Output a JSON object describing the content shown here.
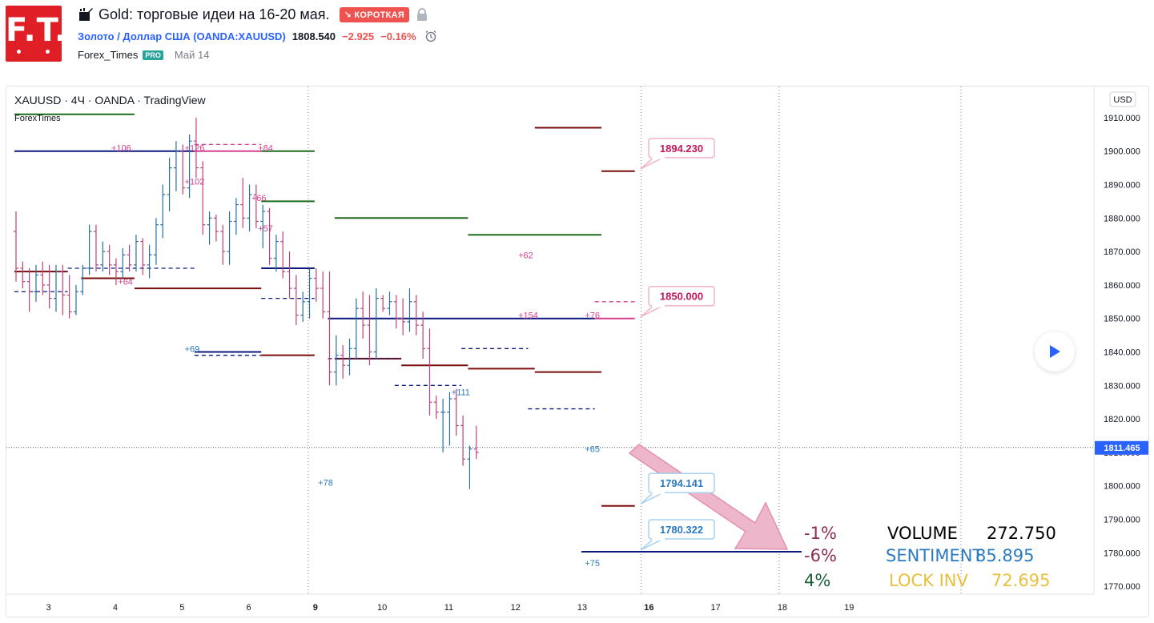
{
  "header": {
    "logo_text": "F.T.",
    "title": "Gold: торговые идеи на 16-20 мая.",
    "badge": "↘ КОРОТКАЯ",
    "symbol_name": "Золото / Доллар США (OANDA:XAUUSD)",
    "price": "1808.540",
    "change": "−2.925",
    "change_pct": "−0.16%",
    "author": "Forex_Times",
    "pro_badge": "PRO",
    "date": "Май 14"
  },
  "legend": {
    "line": "XAUUSD · 4Ч · OANDA · TradingView",
    "indicator": "ForexTimes"
  },
  "colors": {
    "up": "#2a6f9f",
    "down": "#b8437a",
    "maroon": "#7b0d0d",
    "navy": "#0d1a7d",
    "green": "#1e6b1e",
    "pink": "#d6408f",
    "blue_label": "#2a7ac0",
    "pink_label": "#c2185b",
    "arrow_fill": "#eeb3c9",
    "arrow_stroke": "#e08bab"
  },
  "chart_data": {
    "type": "ohlc",
    "ylim": [
      1765,
      1915
    ],
    "y_ticks": [
      "1910.000",
      "1900.000",
      "1890.000",
      "1880.000",
      "1870.000",
      "1860.000",
      "1850.000",
      "1840.000",
      "1830.000",
      "1820.000",
      "1810.000",
      "1800.000",
      "1790.000",
      "1780.000",
      "1770.000"
    ],
    "axis_unit": "USD",
    "current_price": "1811.465",
    "x_ticks": [
      {
        "label": "3",
        "bar": 5
      },
      {
        "label": "4",
        "bar": 15
      },
      {
        "label": "5",
        "bar": 25
      },
      {
        "label": "6",
        "bar": 35
      },
      {
        "label": "9",
        "bar": 45
      },
      {
        "label": "10",
        "bar": 55
      },
      {
        "label": "11",
        "bar": 65
      },
      {
        "label": "12",
        "bar": 75
      },
      {
        "label": "13",
        "bar": 85
      },
      {
        "label": "16",
        "bar": 95
      },
      {
        "label": "17",
        "bar": 105
      },
      {
        "label": "18",
        "bar": 115
      },
      {
        "label": "19",
        "bar": 125
      }
    ],
    "bars": [
      [
        1876,
        1882,
        1861,
        1865
      ],
      [
        1865,
        1867,
        1859,
        1861
      ],
      [
        1861,
        1865,
        1852,
        1858
      ],
      [
        1858,
        1866,
        1855,
        1863
      ],
      [
        1863,
        1867,
        1857,
        1860
      ],
      [
        1860,
        1866,
        1853,
        1856
      ],
      [
        1856,
        1866,
        1852,
        1864
      ],
      [
        1864,
        1866,
        1851,
        1857
      ],
      [
        1857,
        1863,
        1850,
        1852
      ],
      [
        1852,
        1860,
        1851,
        1858
      ],
      [
        1858,
        1866,
        1857,
        1865
      ],
      [
        1865,
        1878,
        1863,
        1876
      ],
      [
        1876,
        1878,
        1864,
        1866
      ],
      [
        1866,
        1873,
        1864,
        1870
      ],
      [
        1870,
        1872,
        1863,
        1866
      ],
      [
        1866,
        1868,
        1860,
        1864
      ],
      [
        1864,
        1871,
        1862,
        1869
      ],
      [
        1869,
        1872,
        1864,
        1866
      ],
      [
        1866,
        1875,
        1864,
        1873
      ],
      [
        1873,
        1874,
        1863,
        1866
      ],
      [
        1866,
        1872,
        1862,
        1869
      ],
      [
        1869,
        1880,
        1866,
        1878
      ],
      [
        1878,
        1890,
        1874,
        1887
      ],
      [
        1887,
        1898,
        1882,
        1895
      ],
      [
        1895,
        1903,
        1888,
        1900
      ],
      [
        1900,
        1902,
        1887,
        1889
      ],
      [
        1889,
        1905,
        1886,
        1903
      ],
      [
        1903,
        1910,
        1892,
        1895
      ],
      [
        1895,
        1897,
        1875,
        1878
      ],
      [
        1878,
        1882,
        1872,
        1880
      ],
      [
        1880,
        1881,
        1873,
        1876
      ],
      [
        1876,
        1878,
        1866,
        1870
      ],
      [
        1870,
        1882,
        1866,
        1879
      ],
      [
        1879,
        1886,
        1875,
        1884
      ],
      [
        1884,
        1892,
        1877,
        1880
      ],
      [
        1880,
        1890,
        1876,
        1887
      ],
      [
        1887,
        1890,
        1877,
        1879
      ],
      [
        1879,
        1884,
        1871,
        1882
      ],
      [
        1882,
        1883,
        1866,
        1868
      ],
      [
        1868,
        1875,
        1864,
        1873
      ],
      [
        1873,
        1876,
        1862,
        1864
      ],
      [
        1864,
        1870,
        1856,
        1859
      ],
      [
        1859,
        1863,
        1848,
        1851
      ],
      [
        1851,
        1858,
        1849,
        1855
      ],
      [
        1855,
        1865,
        1850,
        1862
      ],
      [
        1862,
        1865,
        1855,
        1859
      ],
      [
        1859,
        1864,
        1850,
        1852
      ],
      [
        1852,
        1864,
        1830,
        1834
      ],
      [
        1834,
        1845,
        1830,
        1839
      ],
      [
        1839,
        1842,
        1832,
        1836
      ],
      [
        1836,
        1844,
        1833,
        1841
      ],
      [
        1841,
        1856,
        1838,
        1853
      ],
      [
        1853,
        1858,
        1844,
        1848
      ],
      [
        1848,
        1857,
        1836,
        1840
      ],
      [
        1840,
        1859,
        1838,
        1856
      ],
      [
        1856,
        1857,
        1852,
        1853
      ],
      [
        1853,
        1858,
        1851,
        1855
      ],
      [
        1855,
        1857,
        1847,
        1850
      ],
      [
        1850,
        1856,
        1845,
        1849
      ],
      [
        1849,
        1859,
        1846,
        1855
      ],
      [
        1855,
        1857,
        1845,
        1848
      ],
      [
        1848,
        1852,
        1838,
        1841
      ],
      [
        1841,
        1847,
        1821,
        1825
      ],
      [
        1825,
        1827,
        1820,
        1822
      ],
      [
        1822,
        1826,
        1810,
        1822
      ],
      [
        1822,
        1828,
        1812,
        1826
      ],
      [
        1826,
        1829,
        1815,
        1818
      ],
      [
        1818,
        1821,
        1806,
        1808
      ],
      [
        1808,
        1812,
        1799,
        1811
      ],
      [
        1811,
        1818,
        1808,
        1810
      ]
    ],
    "bar_start_x": 10,
    "levels": [
      {
        "kind": "solid",
        "color": "green",
        "b0": 0,
        "b1": 18,
        "y": 1911
      },
      {
        "kind": "solid",
        "color": "navy",
        "b0": 0,
        "b1": 27,
        "y": 1900
      },
      {
        "kind": "solid",
        "color": "pink",
        "b0": 27,
        "b1": 37,
        "y": 1900
      },
      {
        "kind": "dash",
        "color": "pink",
        "b0": 27,
        "b1": 37,
        "y": 1902
      },
      {
        "kind": "solid",
        "color": "green",
        "b0": 37,
        "b1": 45,
        "y": 1900
      },
      {
        "kind": "solid",
        "color": "maroon",
        "b0": 0,
        "b1": 8,
        "y": 1864
      },
      {
        "kind": "dash",
        "color": "navy",
        "b0": 0,
        "b1": 8,
        "y": 1858
      },
      {
        "kind": "solid",
        "color": "maroon",
        "b0": 10,
        "b1": 18,
        "y": 1862
      },
      {
        "kind": "dash",
        "color": "navy",
        "b0": 8,
        "b1": 27,
        "y": 1865
      },
      {
        "kind": "solid",
        "color": "maroon",
        "b0": 18,
        "b1": 37,
        "y": 1859
      },
      {
        "kind": "solid",
        "color": "green",
        "b0": 37,
        "b1": 45,
        "y": 1885
      },
      {
        "kind": "solid",
        "color": "navy",
        "b0": 37,
        "b1": 45,
        "y": 1865
      },
      {
        "kind": "dash",
        "color": "navy",
        "b0": 37,
        "b1": 45,
        "y": 1856
      },
      {
        "kind": "solid",
        "color": "navy",
        "b0": 27,
        "b1": 37,
        "y": 1840
      },
      {
        "kind": "dash",
        "color": "navy",
        "b0": 27,
        "b1": 37,
        "y": 1839
      },
      {
        "kind": "solid",
        "color": "maroon",
        "b0": 37,
        "b1": 45,
        "y": 1839
      },
      {
        "kind": "solid",
        "color": "green",
        "b0": 48,
        "b1": 68,
        "y": 1880
      },
      {
        "kind": "solid",
        "color": "navy",
        "b0": 47,
        "b1": 87,
        "y": 1850
      },
      {
        "kind": "solid",
        "color": "maroon",
        "b0": 48,
        "b1": 58,
        "y": 1838
      },
      {
        "kind": "dash",
        "color": "navy",
        "b0": 47,
        "b1": 58,
        "y": 1838
      },
      {
        "kind": "solid",
        "color": "maroon",
        "b0": 58,
        "b1": 68,
        "y": 1836
      },
      {
        "kind": "dash",
        "color": "navy",
        "b0": 57,
        "b1": 67,
        "y": 1830
      },
      {
        "kind": "dash",
        "color": "navy",
        "b0": 67,
        "b1": 77,
        "y": 1841
      },
      {
        "kind": "solid",
        "color": "green",
        "b0": 68,
        "b1": 88,
        "y": 1875
      },
      {
        "kind": "solid",
        "color": "maroon",
        "b0": 68,
        "b1": 78,
        "y": 1835
      },
      {
        "kind": "solid",
        "color": "maroon",
        "b0": 78,
        "b1": 88,
        "y": 1834
      },
      {
        "kind": "dash",
        "color": "navy",
        "b0": 77,
        "b1": 87,
        "y": 1823
      },
      {
        "kind": "solid",
        "color": "maroon",
        "b0": 78,
        "b1": 88,
        "y": 1907
      },
      {
        "kind": "solid",
        "color": "maroon",
        "b0": 88,
        "b1": 93,
        "y": 1894
      },
      {
        "kind": "solid",
        "color": "pink",
        "b0": 87,
        "b1": 93,
        "y": 1850
      },
      {
        "kind": "dash",
        "color": "pink",
        "b0": 87,
        "b1": 93,
        "y": 1855
      },
      {
        "kind": "solid",
        "color": "maroon",
        "b0": 88,
        "b1": 93,
        "y": 1794
      },
      {
        "kind": "solid",
        "color": "navy",
        "b0": 85,
        "b1": 118,
        "y": 1780.3
      }
    ],
    "annotations": [
      {
        "text": "+106",
        "color": "pink",
        "bar": 15,
        "y": 1901
      },
      {
        "text": "+126",
        "color": "pink",
        "bar": 26,
        "y": 1901
      },
      {
        "text": "+84",
        "color": "pink",
        "bar": 37,
        "y": 1901
      },
      {
        "text": "+102",
        "color": "pink",
        "bar": 26,
        "y": 1891
      },
      {
        "text": "+66",
        "color": "pink",
        "bar": 36,
        "y": 1886
      },
      {
        "text": "+57",
        "color": "pink",
        "bar": 37,
        "y": 1877
      },
      {
        "text": "+64",
        "color": "pink",
        "bar": 16,
        "y": 1861
      },
      {
        "text": "+62",
        "color": "pink",
        "bar": 76,
        "y": 1869
      },
      {
        "text": "+154",
        "color": "pink",
        "bar": 76,
        "y": 1851
      },
      {
        "text": "+76",
        "color": "pink",
        "bar": 86,
        "y": 1851
      },
      {
        "text": "+69",
        "color": "blue_label",
        "bar": 26,
        "y": 1841
      },
      {
        "text": "+111",
        "color": "blue_label",
        "bar": 66,
        "y": 1828
      },
      {
        "text": "+65",
        "color": "blue_label",
        "bar": 86,
        "y": 1811
      },
      {
        "text": "+78",
        "color": "blue_label",
        "bar": 46,
        "y": 1801
      },
      {
        "text": "+75",
        "color": "blue_label",
        "bar": 86,
        "y": 1777
      }
    ],
    "callouts": [
      {
        "text": "1894.230",
        "style": "pink",
        "value": 1894.23
      },
      {
        "text": "1850.000",
        "style": "pink",
        "value": 1850.0
      },
      {
        "text": "1794.141",
        "style": "blue",
        "value": 1794.141
      },
      {
        "text": "1780.322",
        "style": "blue",
        "value": 1780.322
      }
    ]
  },
  "stats": {
    "rows": [
      {
        "pct": "-1%",
        "pct_color": "#8e2a55",
        "label": "VOLUME",
        "label_color": "#000000",
        "value": "272.750",
        "value_color": "#000000"
      },
      {
        "pct": "-6%",
        "pct_color": "#8e2a55",
        "label": "SENTIMENT",
        "label_color": "#2a7ac0",
        "value": "85.895",
        "value_color": "#2a7ac0"
      },
      {
        "pct": "4%",
        "pct_color": "#1e5e38",
        "label": "LOCK INV",
        "label_color": "#e9bf3e",
        "value": "72.695",
        "value_color": "#e9bf3e"
      }
    ]
  }
}
